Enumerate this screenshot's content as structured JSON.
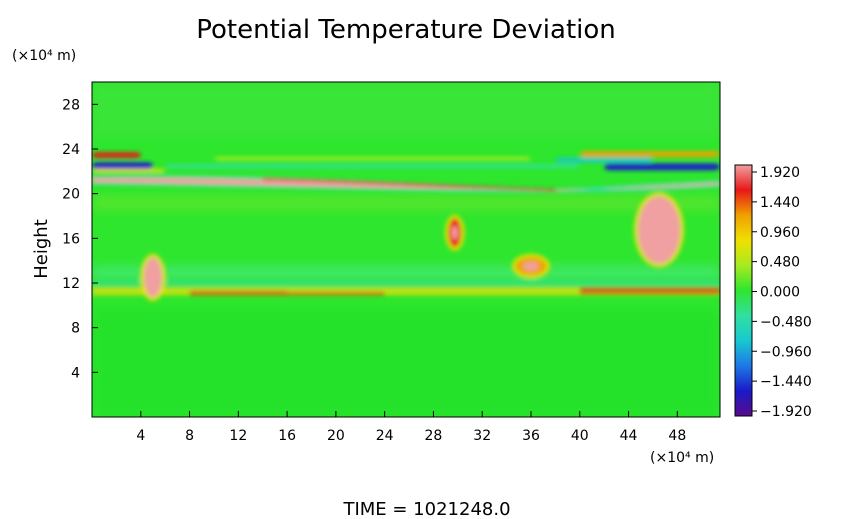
{
  "chart_data": {
    "type": "heatmap",
    "title": "Potential Temperature Deviation",
    "ylabel": "Height",
    "x_unit": "(×10⁴ m)",
    "y_unit": "(×10⁴ m)",
    "x_ticks": [
      4,
      8,
      12,
      16,
      20,
      24,
      28,
      32,
      36,
      40,
      44,
      48
    ],
    "y_ticks": [
      4,
      8,
      12,
      16,
      20,
      24,
      28
    ],
    "xlim": [
      0,
      51.5
    ],
    "ylim": [
      0,
      30
    ],
    "grid": false,
    "colorbar": {
      "ticks": [
        "1.920",
        "1.440",
        "0.960",
        "0.480",
        "0.000",
        "−0.480",
        "−0.960",
        "−1.440",
        "−1.920"
      ],
      "range": [
        -2.1,
        2.1
      ],
      "colors": [
        "#5a0a8c",
        "#1a1ac8",
        "#1e78e6",
        "#18c8d0",
        "#30e0a0",
        "#2ee62e",
        "#a8ea20",
        "#f0e000",
        "#f0a000",
        "#e81818",
        "#f0a0a0"
      ]
    },
    "features": [
      {
        "name": "stratospheric layer",
        "x": [
          0,
          51.5
        ],
        "y": [
          20.3,
          21.8
        ],
        "value": 2.0
      },
      {
        "name": "upper wave band",
        "x": [
          0,
          51.5
        ],
        "y": [
          22,
          24.5
        ],
        "value": -1.2
      },
      {
        "name": "tropopause band",
        "x": [
          0,
          51.5
        ],
        "y": [
          10.5,
          12.2
        ],
        "value": 0.9
      },
      {
        "name": "plume 1",
        "x": [
          4.5,
          5.5
        ],
        "y": [
          11,
          14
        ],
        "value": 1.9
      },
      {
        "name": "plume 2",
        "x": [
          29.5,
          30
        ],
        "y": [
          15.5,
          17.5
        ],
        "value": 1.5
      },
      {
        "name": "plume 3",
        "x": [
          35,
          37
        ],
        "y": [
          13,
          14
        ],
        "value": 1.3
      },
      {
        "name": "plume 4",
        "x": [
          45,
          48
        ],
        "y": [
          14,
          19.5
        ],
        "value": 1.9
      }
    ]
  },
  "time_label": "TIME  =  1021248.0"
}
